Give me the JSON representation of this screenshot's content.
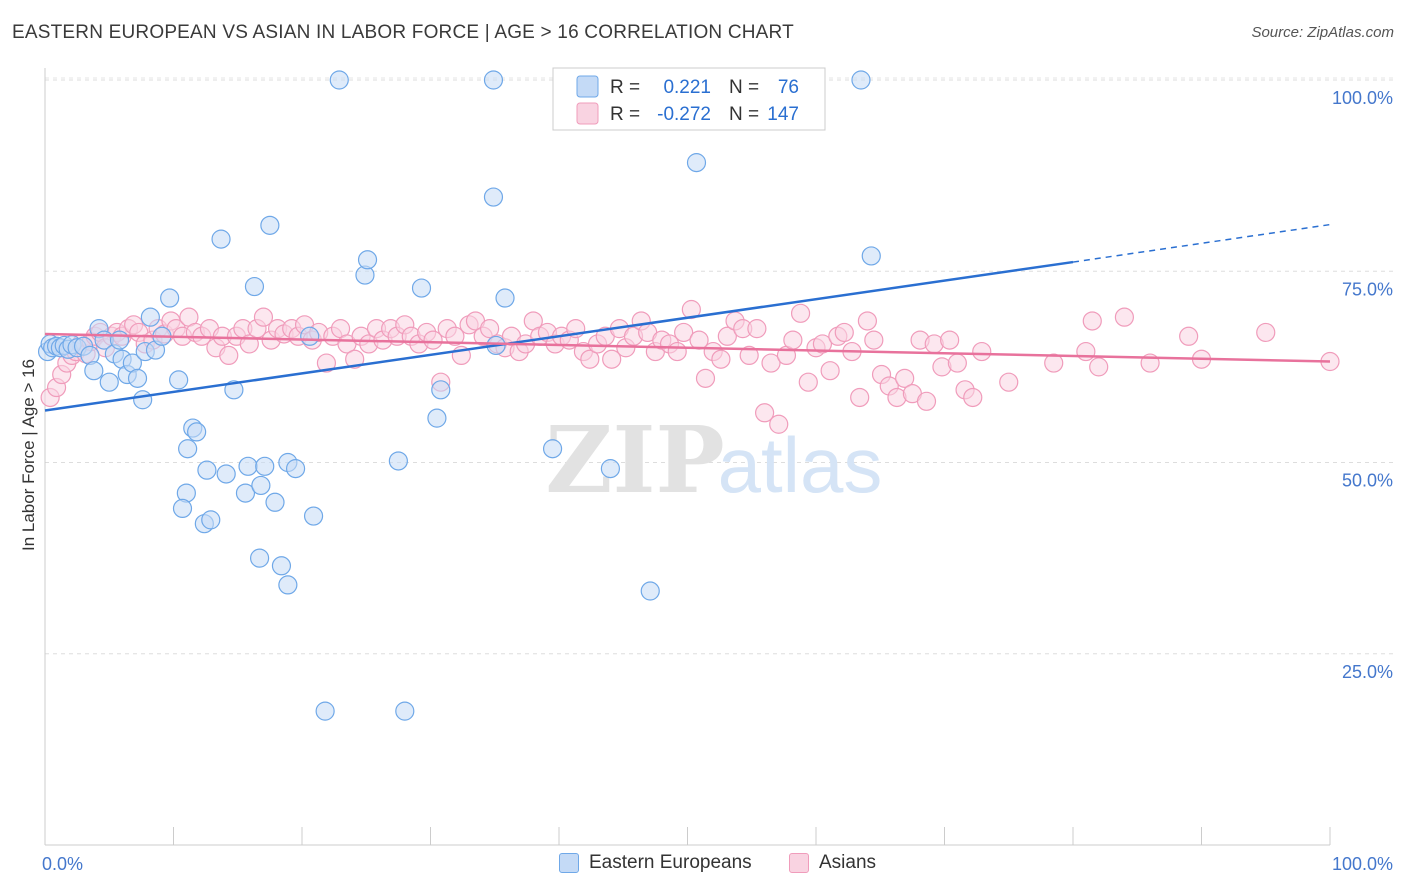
{
  "header": {
    "title": "EASTERN EUROPEAN VS ASIAN IN LABOR FORCE | AGE > 16 CORRELATION CHART",
    "source": "Source: ZipAtlas.com"
  },
  "watermark": {
    "zip": "ZIP",
    "atlas": "atlas"
  },
  "colors": {
    "blue": "#6fa8e8",
    "blue_fill": "#c4daf6",
    "blue_line": "#2a6fd1",
    "pink": "#f09cbb",
    "pink_fill": "#f9d3e1",
    "pink_line": "#e8729c",
    "axis_text": "#4477cc",
    "grid": "#dddddd"
  },
  "legend_box": {
    "rows": [
      {
        "r_label": "R =",
        "r_value": "0.221",
        "n_label": "N =",
        "n_value": "76",
        "color": "blue"
      },
      {
        "r_label": "R =",
        "r_value": "-0.272",
        "n_label": "N =",
        "n_value": "147",
        "color": "pink"
      }
    ]
  },
  "legend_bottom": [
    {
      "label": "Eastern Europeans",
      "color": "blue"
    },
    {
      "label": "Asians",
      "color": "pink"
    }
  ],
  "chart_data": {
    "type": "scatter",
    "title": "EASTERN EUROPEAN VS ASIAN IN LABOR FORCE | AGE > 16 CORRELATION CHART",
    "ylabel": "In Labor Force | Age > 16",
    "xlim": [
      0,
      100
    ],
    "ylim": [
      0,
      105
    ],
    "x_tick_labels": [
      {
        "value": 0,
        "label": "0.0%"
      },
      {
        "value": 100,
        "label": "100.0%"
      }
    ],
    "y_tick_labels": [
      {
        "value": 25,
        "label": "25.0%"
      },
      {
        "value": 50,
        "label": "50.0%"
      },
      {
        "value": 75,
        "label": "75.0%"
      },
      {
        "value": 100,
        "label": "100.0%"
      }
    ],
    "grid": true,
    "series": [
      {
        "name": "Eastern Europeans",
        "color": "blue",
        "trend": {
          "x0": 0,
          "y0": 56.8,
          "x1": 80,
          "y1": 76.2,
          "dash_to_x": 100,
          "dash_to_y": 81.1
        },
        "points": [
          [
            0.2,
            64.5
          ],
          [
            0.4,
            65.5
          ],
          [
            0.6,
            65.0
          ],
          [
            0.9,
            65.2
          ],
          [
            1.2,
            65.0
          ],
          [
            1.5,
            65.3
          ],
          [
            1.8,
            64.8
          ],
          [
            2.1,
            65.4
          ],
          [
            2.5,
            65.0
          ],
          [
            3.0,
            65.2
          ],
          [
            3.5,
            64.0
          ],
          [
            3.8,
            62.0
          ],
          [
            4.2,
            67.5
          ],
          [
            4.6,
            66.0
          ],
          [
            5.0,
            60.5
          ],
          [
            5.4,
            64.2
          ],
          [
            5.8,
            66.0
          ],
          [
            6.0,
            63.5
          ],
          [
            6.4,
            61.5
          ],
          [
            6.8,
            63.0
          ],
          [
            7.2,
            61.0
          ],
          [
            7.6,
            58.2
          ],
          [
            7.8,
            64.5
          ],
          [
            8.2,
            69.0
          ],
          [
            8.6,
            64.7
          ],
          [
            9.1,
            66.5
          ],
          [
            9.7,
            71.5
          ],
          [
            10.4,
            60.8
          ],
          [
            11.1,
            51.8
          ],
          [
            11.0,
            46.0
          ],
          [
            10.7,
            44.0
          ],
          [
            11.5,
            54.5
          ],
          [
            11.8,
            54.0
          ],
          [
            12.4,
            42.0
          ],
          [
            12.6,
            49.0
          ],
          [
            12.9,
            42.5
          ],
          [
            13.7,
            79.2
          ],
          [
            14.1,
            48.5
          ],
          [
            14.7,
            59.5
          ],
          [
            15.6,
            46.0
          ],
          [
            15.8,
            49.5
          ],
          [
            16.3,
            73.0
          ],
          [
            16.7,
            37.5
          ],
          [
            16.8,
            47.0
          ],
          [
            17.1,
            49.5
          ],
          [
            17.5,
            81.0
          ],
          [
            17.9,
            44.8
          ],
          [
            18.4,
            36.5
          ],
          [
            18.9,
            34.0
          ],
          [
            18.9,
            50.0
          ],
          [
            19.5,
            49.2
          ],
          [
            20.6,
            66.5
          ],
          [
            20.9,
            43.0
          ],
          [
            21.8,
            17.5
          ],
          [
            22.9,
            100.0
          ],
          [
            24.9,
            74.5
          ],
          [
            25.1,
            76.5
          ],
          [
            27.5,
            50.2
          ],
          [
            28.0,
            17.5
          ],
          [
            29.3,
            72.8
          ],
          [
            30.5,
            55.8
          ],
          [
            30.8,
            59.5
          ],
          [
            34.9,
            100.0
          ],
          [
            34.9,
            84.7
          ],
          [
            35.1,
            65.3
          ],
          [
            35.8,
            71.5
          ],
          [
            39.5,
            51.8
          ],
          [
            44.0,
            49.2
          ],
          [
            47.1,
            33.2
          ],
          [
            50.7,
            89.2
          ],
          [
            63.5,
            100.0
          ],
          [
            64.3,
            77.0
          ]
        ]
      },
      {
        "name": "Asians",
        "color": "pink",
        "trend": {
          "x0": 0,
          "y0": 66.8,
          "x1": 100,
          "y1": 63.2
        },
        "points": [
          [
            0.4,
            58.5
          ],
          [
            0.9,
            59.8
          ],
          [
            1.3,
            61.5
          ],
          [
            1.7,
            63.0
          ],
          [
            2.1,
            64.0
          ],
          [
            2.4,
            64.5
          ],
          [
            2.8,
            65.5
          ],
          [
            3.2,
            64.2
          ],
          [
            3.6,
            65.8
          ],
          [
            3.9,
            66.5
          ],
          [
            4.3,
            67.0
          ],
          [
            4.7,
            65.0
          ],
          [
            5.2,
            66.5
          ],
          [
            5.6,
            67.0
          ],
          [
            6.0,
            66.5
          ],
          [
            6.5,
            67.5
          ],
          [
            6.9,
            68.0
          ],
          [
            7.3,
            67.0
          ],
          [
            7.8,
            65.5
          ],
          [
            8.4,
            66.0
          ],
          [
            8.8,
            67.5
          ],
          [
            9.3,
            66.8
          ],
          [
            9.8,
            68.5
          ],
          [
            10.2,
            67.5
          ],
          [
            10.7,
            66.5
          ],
          [
            11.2,
            69.0
          ],
          [
            11.7,
            67.0
          ],
          [
            12.2,
            66.5
          ],
          [
            12.8,
            67.5
          ],
          [
            13.3,
            65.0
          ],
          [
            13.8,
            66.5
          ],
          [
            14.3,
            64.0
          ],
          [
            14.9,
            66.5
          ],
          [
            15.4,
            67.5
          ],
          [
            15.9,
            65.5
          ],
          [
            16.5,
            67.5
          ],
          [
            17.0,
            69.0
          ],
          [
            17.6,
            66.0
          ],
          [
            18.1,
            67.5
          ],
          [
            18.6,
            66.8
          ],
          [
            19.2,
            67.5
          ],
          [
            19.7,
            66.5
          ],
          [
            20.2,
            68.0
          ],
          [
            20.8,
            66.0
          ],
          [
            21.3,
            67.0
          ],
          [
            21.9,
            63.0
          ],
          [
            22.4,
            66.5
          ],
          [
            23.0,
            67.5
          ],
          [
            23.5,
            65.5
          ],
          [
            24.1,
            63.5
          ],
          [
            24.6,
            66.5
          ],
          [
            25.2,
            65.5
          ],
          [
            25.8,
            67.5
          ],
          [
            26.3,
            66.0
          ],
          [
            26.9,
            67.5
          ],
          [
            27.4,
            66.5
          ],
          [
            28.0,
            68.0
          ],
          [
            28.5,
            66.5
          ],
          [
            29.1,
            65.5
          ],
          [
            29.7,
            67.0
          ],
          [
            30.2,
            66.0
          ],
          [
            30.8,
            60.5
          ],
          [
            31.3,
            67.5
          ],
          [
            31.9,
            66.5
          ],
          [
            32.4,
            64.0
          ],
          [
            33.0,
            68.0
          ],
          [
            33.5,
            68.5
          ],
          [
            34.1,
            66.5
          ],
          [
            34.6,
            67.5
          ],
          [
            35.2,
            65.5
          ],
          [
            35.8,
            65.0
          ],
          [
            36.3,
            66.5
          ],
          [
            36.9,
            64.5
          ],
          [
            37.4,
            65.5
          ],
          [
            38.0,
            68.5
          ],
          [
            38.5,
            66.5
          ],
          [
            39.1,
            67.0
          ],
          [
            39.7,
            65.5
          ],
          [
            40.2,
            66.5
          ],
          [
            40.8,
            66.0
          ],
          [
            41.3,
            67.5
          ],
          [
            41.9,
            64.5
          ],
          [
            42.4,
            63.5
          ],
          [
            43.0,
            65.5
          ],
          [
            43.6,
            66.5
          ],
          [
            44.1,
            63.5
          ],
          [
            44.7,
            67.5
          ],
          [
            45.2,
            65.0
          ],
          [
            45.8,
            66.5
          ],
          [
            46.4,
            68.5
          ],
          [
            46.9,
            67.0
          ],
          [
            47.5,
            64.5
          ],
          [
            48.0,
            66.0
          ],
          [
            48.6,
            65.5
          ],
          [
            49.2,
            64.5
          ],
          [
            49.7,
            67.0
          ],
          [
            50.3,
            70.0
          ],
          [
            50.9,
            66.0
          ],
          [
            51.4,
            61.0
          ],
          [
            52.0,
            64.5
          ],
          [
            52.6,
            63.5
          ],
          [
            53.1,
            66.5
          ],
          [
            53.7,
            68.5
          ],
          [
            54.3,
            67.5
          ],
          [
            54.8,
            64.0
          ],
          [
            55.4,
            67.5
          ],
          [
            56.0,
            56.5
          ],
          [
            56.5,
            63.0
          ],
          [
            57.1,
            55.0
          ],
          [
            57.7,
            64.0
          ],
          [
            58.2,
            66.0
          ],
          [
            58.8,
            69.5
          ],
          [
            59.4,
            60.5
          ],
          [
            60.0,
            65.0
          ],
          [
            60.5,
            65.5
          ],
          [
            61.1,
            62.0
          ],
          [
            61.7,
            66.5
          ],
          [
            62.2,
            67.0
          ],
          [
            62.8,
            64.5
          ],
          [
            63.4,
            58.5
          ],
          [
            64.0,
            68.5
          ],
          [
            64.5,
            66.0
          ],
          [
            65.1,
            61.5
          ],
          [
            65.7,
            60.0
          ],
          [
            66.3,
            58.5
          ],
          [
            66.9,
            61.0
          ],
          [
            67.5,
            59.0
          ],
          [
            68.1,
            66.0
          ],
          [
            68.6,
            58.0
          ],
          [
            69.2,
            65.5
          ],
          [
            69.8,
            62.5
          ],
          [
            70.4,
            66.0
          ],
          [
            71.0,
            63.0
          ],
          [
            71.6,
            59.5
          ],
          [
            72.2,
            58.5
          ],
          [
            72.9,
            64.5
          ],
          [
            75.0,
            60.5
          ],
          [
            78.5,
            63.0
          ],
          [
            81.0,
            64.5
          ],
          [
            81.5,
            68.5
          ],
          [
            82.0,
            62.5
          ],
          [
            84.0,
            69.0
          ],
          [
            86.0,
            63.0
          ],
          [
            89.0,
            66.5
          ],
          [
            90.0,
            63.5
          ],
          [
            95.0,
            67.0
          ],
          [
            100.0,
            63.2
          ]
        ]
      }
    ]
  }
}
